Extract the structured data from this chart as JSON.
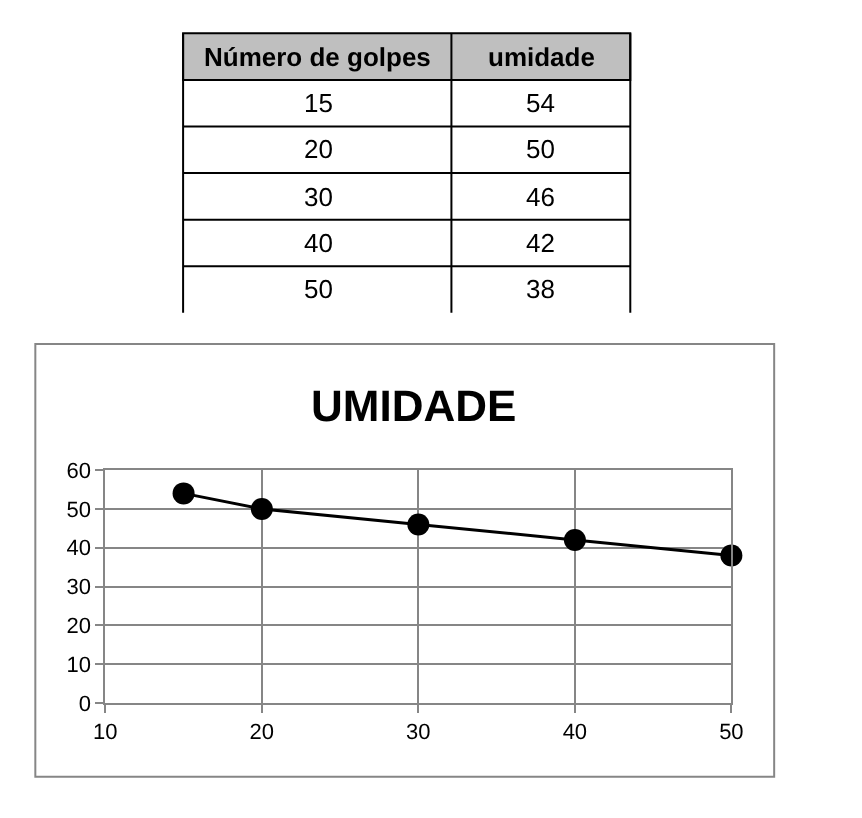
{
  "chart_data": {
    "type": "line",
    "title": "UMIDADE",
    "annotations": [
      "Número de golpes",
      "umidade",
      "15",
      "54",
      "20",
      "50",
      "30",
      "46",
      "40",
      "42",
      "50",
      "38"
    ],
    "x": [
      15,
      20,
      30,
      40,
      50
    ],
    "series": [
      {
        "color": "#000000",
        "values": [
          54,
          50,
          46,
          42,
          38
        ]
      }
    ],
    "xlim": [
      10,
      50
    ],
    "xticks": [
      10,
      20,
      30,
      40,
      50
    ],
    "ylim": [
      0,
      60
    ],
    "yticks": [
      0,
      10,
      20,
      30,
      40,
      50,
      60
    ],
    "grid": true,
    "marker": "circle",
    "line_style": "solid"
  }
}
